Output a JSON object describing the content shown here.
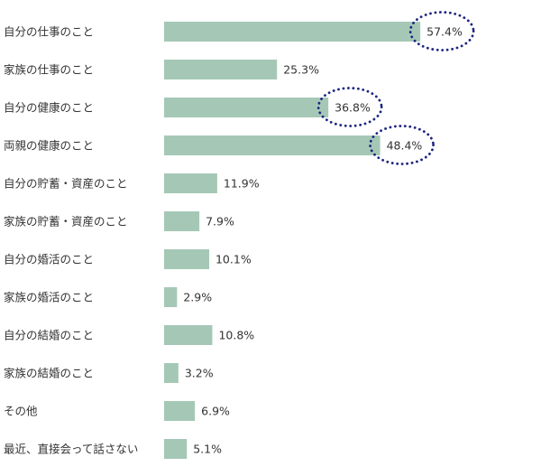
{
  "chart_data": {
    "type": "bar",
    "orientation": "horizontal",
    "categories": [
      "自分の仕事のこと",
      "家族の仕事のこと",
      "自分の健康のこと",
      "両親の健康のこと",
      "自分の貯蓄・資産のこと",
      "家族の貯蓄・資産のこと",
      "自分の婚活のこと",
      "家族の婚活のこと",
      "自分の結婚のこと",
      "家族の結婚のこと",
      "その他",
      "最近、直接会って話さない"
    ],
    "values": [
      57.4,
      25.3,
      36.8,
      48.4,
      11.9,
      7.9,
      10.1,
      2.9,
      10.8,
      3.2,
      6.9,
      5.1
    ],
    "value_labels": [
      "57.4%",
      "25.3%",
      "36.8%",
      "48.4%",
      "11.9%",
      "7.9%",
      "10.1%",
      "2.9%",
      "10.8%",
      "3.2%",
      "6.9%",
      "5.1%"
    ],
    "highlighted": [
      0,
      2,
      3
    ],
    "bar_color": "#a5c8b6",
    "highlight_color": "#1c2580",
    "title": "",
    "xlabel": "",
    "ylabel": "",
    "grid": false
  }
}
